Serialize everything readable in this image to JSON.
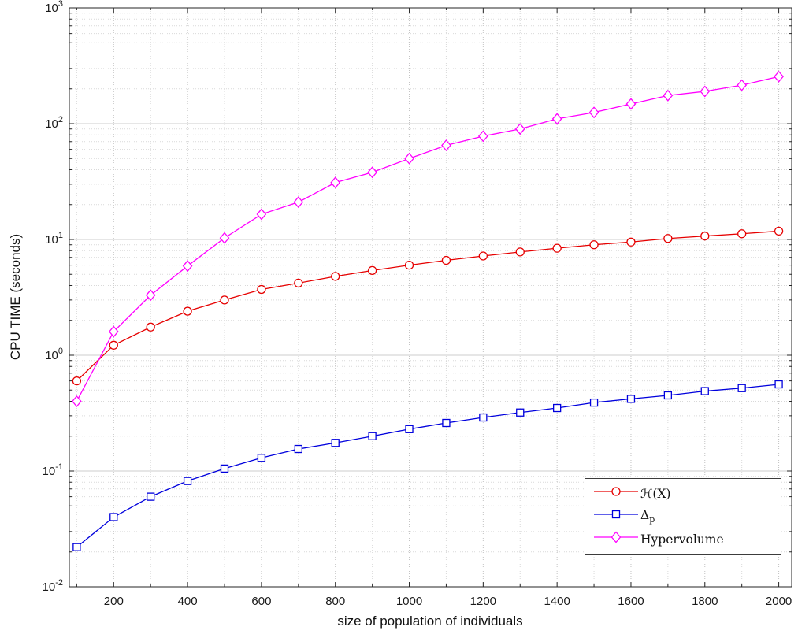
{
  "chart_data": {
    "type": "line",
    "title": "",
    "xlabel": "size of population of individuals",
    "ylabel": "CPU TIME (seconds)",
    "yscale": "log",
    "grid": true,
    "minor_grid": true,
    "legend_position": "right-center",
    "xlim": [
      80,
      2035
    ],
    "ylog_range": [
      -2,
      3
    ],
    "xticks": [
      200,
      400,
      600,
      800,
      1000,
      1200,
      1400,
      1600,
      1800,
      2000
    ],
    "ytick_exponents": [
      -2,
      -1,
      0,
      1,
      2,
      3
    ],
    "ytick_base": "10",
    "x": [
      100,
      200,
      300,
      400,
      500,
      600,
      700,
      800,
      900,
      1000,
      1100,
      1200,
      1300,
      1400,
      1500,
      1600,
      1700,
      1800,
      1900,
      2000
    ],
    "series": [
      {
        "name": "ℋ(X)",
        "color": "#e60000",
        "marker": "circle",
        "values": [
          0.6,
          1.22,
          1.75,
          2.4,
          3.0,
          3.7,
          4.2,
          4.8,
          5.4,
          6.0,
          6.6,
          7.2,
          7.8,
          8.4,
          9.0,
          9.5,
          10.2,
          10.7,
          11.2,
          11.8
        ]
      },
      {
        "name": "Δ_p",
        "color": "#0000dd",
        "marker": "square",
        "values": [
          0.022,
          0.04,
          0.06,
          0.082,
          0.105,
          0.13,
          0.155,
          0.175,
          0.2,
          0.23,
          0.26,
          0.29,
          0.32,
          0.35,
          0.39,
          0.42,
          0.45,
          0.49,
          0.52,
          0.56
        ]
      },
      {
        "name": "Hypervolume",
        "color": "#ff00ff",
        "marker": "diamond",
        "values": [
          0.4,
          1.6,
          3.3,
          5.9,
          10.3,
          16.5,
          21.0,
          31.0,
          38.0,
          50.0,
          65.0,
          78.0,
          90.0,
          110,
          125,
          148,
          175,
          190,
          215,
          255
        ]
      }
    ]
  }
}
